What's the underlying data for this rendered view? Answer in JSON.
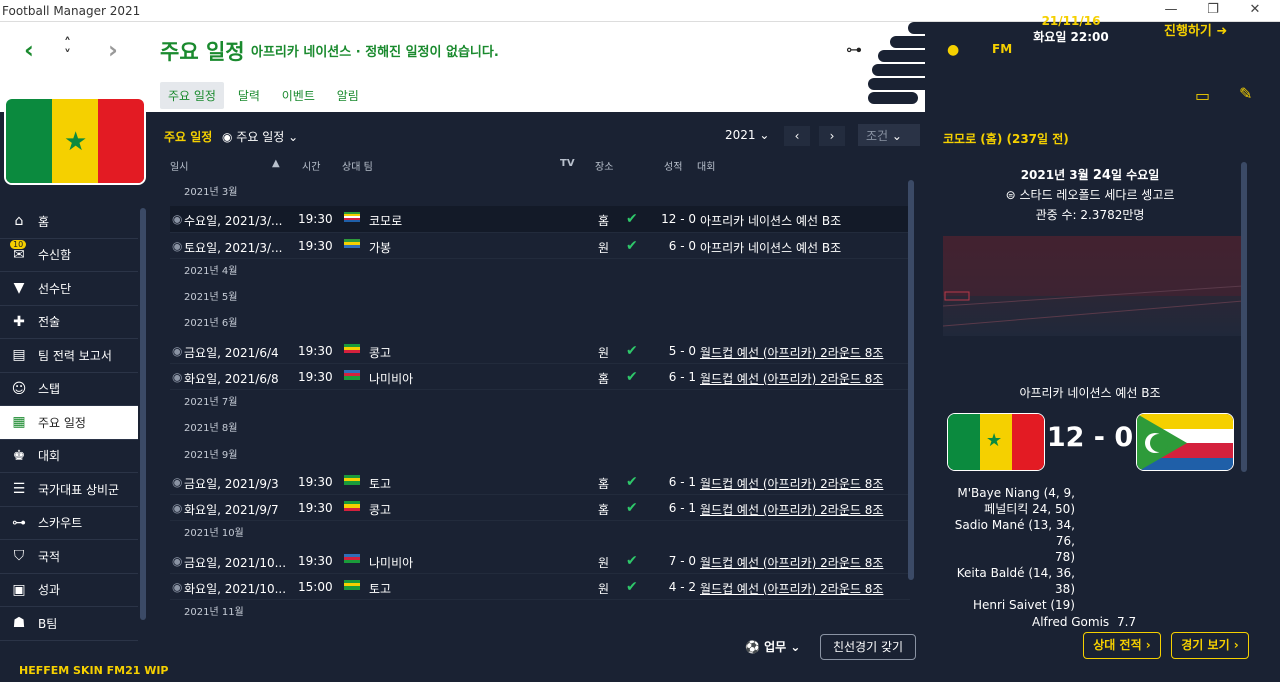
{
  "window": {
    "title": "Football Manager 2021"
  },
  "header": {
    "title": "주요 일정",
    "subtitle": "아프리카 네이션스 · 정해진 일정이 없습니다.",
    "tabs": [
      {
        "label": "주요 일정"
      },
      {
        "label": "달력"
      },
      {
        "label": "이벤트"
      },
      {
        "label": "알림"
      }
    ]
  },
  "topbar": {
    "date": "21/11/16",
    "datetime": "화요일 22:00",
    "fm": "FM",
    "continue_label": "진행하기"
  },
  "team_flag": {
    "colors": [
      "#0b8a3e",
      "#f5d000",
      "#e31b23"
    ]
  },
  "sidebar": {
    "items": [
      {
        "label": "홈"
      },
      {
        "label": "수신함",
        "badge": "10"
      },
      {
        "label": "선수단"
      },
      {
        "label": "전술"
      },
      {
        "label": "팀 전력 보고서"
      },
      {
        "label": "스탭"
      },
      {
        "label": "주요 일정"
      },
      {
        "label": "대회"
      },
      {
        "label": "국가대표 상비군"
      },
      {
        "label": "스카우트"
      },
      {
        "label": "국적"
      },
      {
        "label": "성과"
      },
      {
        "label": "B팀"
      }
    ],
    "footer": "HEFFEM SKIN FM21 WIP"
  },
  "toolbar": {
    "label": "주요 일정",
    "view": "주요 일정",
    "year": "2021",
    "filter": "조건"
  },
  "table": {
    "headers": {
      "date": "일시",
      "time": "시간",
      "opponent": "상대 팀",
      "tv": "TV",
      "venue": "장소",
      "result": "성적",
      "competition": "대회"
    },
    "groups": [
      {
        "month": "2021년 3월",
        "rows": [
          {
            "date": "수요일, 2021/3/...",
            "time": "19:30",
            "opp": "코모로",
            "venue": "홈",
            "result": "12 - 0",
            "comp": "아프리카 네이션스 예선 B조",
            "flag": [
              "#2e9b3a",
              "#f5d000",
              "#ffffff",
              "#d4213d",
              "#1f5fa8"
            ]
          },
          {
            "date": "토요일, 2021/3/...",
            "time": "19:30",
            "opp": "가봉",
            "venue": "원",
            "result": "6 - 0",
            "comp": "아프리카 네이션스 예선 B조",
            "flag": [
              "#2e9b3a",
              "#f5d000",
              "#2f6fb8"
            ]
          }
        ]
      },
      {
        "month": "2021년 4월",
        "rows": []
      },
      {
        "month": "2021년 5월",
        "rows": []
      },
      {
        "month": "2021년 6월",
        "rows": [
          {
            "date": "금요일, 2021/6/4",
            "time": "19:30",
            "opp": "콩고",
            "venue": "원",
            "result": "5 - 0",
            "comp": "월드컵 예선 (아프리카) 2라운드 8조",
            "flag": [
              "#1a9b3a",
              "#f5d000",
              "#d4213d"
            ]
          },
          {
            "date": "화요일, 2021/6/8",
            "time": "19:30",
            "opp": "나미비아",
            "venue": "홈",
            "result": "6 - 1",
            "comp": "월드컵 예선 (아프리카) 2라운드 8조",
            "flag": [
              "#2f6fb8",
              "#d4213d",
              "#1a9b3a"
            ]
          }
        ]
      },
      {
        "month": "2021년 7월",
        "rows": []
      },
      {
        "month": "2021년 8월",
        "rows": []
      },
      {
        "month": "2021년 9월",
        "rows": [
          {
            "date": "금요일, 2021/9/3",
            "time": "19:30",
            "opp": "토고",
            "venue": "홈",
            "result": "6 - 1",
            "comp": "월드컵 예선 (아프리카) 2라운드 8조",
            "flag": [
              "#1a9b3a",
              "#f5d000",
              "#1a9b3a"
            ]
          },
          {
            "date": "화요일, 2021/9/7",
            "time": "19:30",
            "opp": "콩고",
            "venue": "홈",
            "result": "6 - 1",
            "comp": "월드컵 예선 (아프리카) 2라운드 8조",
            "flag": [
              "#1a9b3a",
              "#f5d000",
              "#d4213d"
            ]
          }
        ]
      },
      {
        "month": "2021년 10월",
        "rows": [
          {
            "date": "금요일, 2021/10...",
            "time": "19:30",
            "opp": "나미비아",
            "venue": "원",
            "result": "7 - 0",
            "comp": "월드컵 예선 (아프리카) 2라운드 8조",
            "flag": [
              "#2f6fb8",
              "#d4213d",
              "#1a9b3a"
            ]
          },
          {
            "date": "화요일, 2021/10...",
            "time": "15:00",
            "opp": "토고",
            "venue": "원",
            "result": "4 - 2",
            "comp": "월드컵 예선 (아프리카) 2라운드 8조",
            "flag": [
              "#1a9b3a",
              "#f5d000",
              "#1a9b3a"
            ]
          }
        ]
      },
      {
        "month": "2021년 11월",
        "rows": []
      }
    ]
  },
  "bottombar": {
    "work": "업무",
    "friendly": "친선경기 갖기"
  },
  "match_panel": {
    "title": "코모로 (홈) (237일 전)",
    "date_pre": "2021년 3월 ",
    "date_day": "24",
    "date_post": "일 수요일",
    "stadium": "스타드 레오폴드 세다르 셍고르",
    "attendance": "관중 수: 2.3782만명",
    "competition": "아프리카 네이션스 예선 B조",
    "score": "12 - 0",
    "scorers": [
      "M'Baye Niang (4, 9,",
      "페널티킥 24, 50)",
      "Sadio Mané (13, 34, 76,",
      "78)",
      "Keita Baldé (14, 36, 38)",
      "Henri Saivet (19)"
    ],
    "motm_name": "Alfred Gomis",
    "motm_rating": "7.7",
    "btn_h2h": "상대 전적",
    "btn_match": "경기 보기"
  }
}
